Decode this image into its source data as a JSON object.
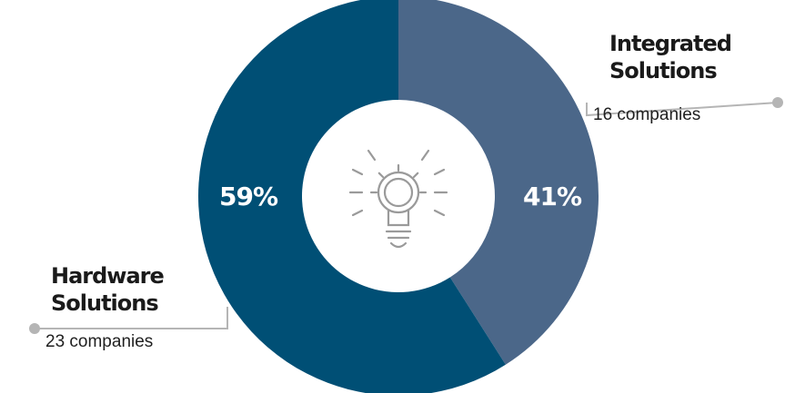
{
  "chart_data": {
    "type": "pie",
    "style": "donut",
    "categories": [
      "Integrated Solutions",
      "Hardware Solutions"
    ],
    "values": [
      41,
      59
    ],
    "value_labels": [
      "41%",
      "59%"
    ],
    "counts": [
      "16 companies",
      "23 companies"
    ],
    "colors": [
      "#4b6789",
      "#004f75"
    ],
    "legend": "callouts",
    "center_icon": "lightbulb-gear-icon"
  },
  "labels": {
    "integrated": {
      "line1": "Integrated",
      "line2": "Solutions",
      "count": "16 companies"
    },
    "hardware": {
      "line1": "Hardware",
      "line2": "Solutions",
      "count": "23 companies"
    }
  }
}
